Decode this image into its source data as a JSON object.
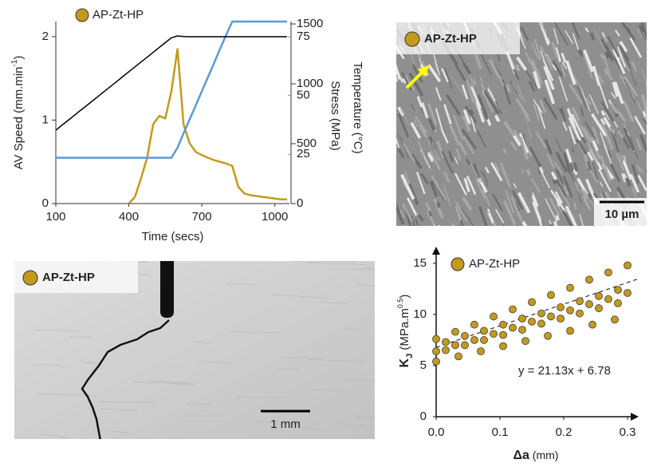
{
  "chart_data": [
    {
      "type": "line",
      "legend": "AP-Zt-HP",
      "xlabel": "Time (secs)",
      "ylabel_parts": [
        "AV Speed (mm.min",
        "-1",
        ")"
      ],
      "y2label": "Stress (MPa)",
      "y3label": "Temperature (°C)",
      "x": [
        100,
        125,
        150,
        175,
        200,
        225,
        250,
        275,
        300,
        325,
        350,
        375,
        400,
        425,
        450,
        475,
        500,
        525,
        550,
        575,
        600,
        625,
        650,
        675,
        700,
        725,
        750,
        775,
        800,
        825,
        850,
        875,
        900,
        925,
        950,
        975,
        1000,
        1025,
        1050
      ],
      "series": [
        {
          "name": "AP-Zt-HP",
          "color": "#c49a1b",
          "axis": "y",
          "values": [
            null,
            null,
            null,
            null,
            null,
            null,
            null,
            null,
            null,
            null,
            null,
            null,
            0,
            0.08,
            0.3,
            0.55,
            0.95,
            1.05,
            1.02,
            1.35,
            1.85,
            0.95,
            0.72,
            0.62,
            0.58,
            0.55,
            0.52,
            0.5,
            0.48,
            0.45,
            0.2,
            0.12,
            0.1,
            0.09,
            0.08,
            0.07,
            0.06,
            0.05,
            0.05
          ]
        },
        {
          "color": "#5b9bd5",
          "axis": "y2",
          "values": [
            23.5,
            23.5,
            23.5,
            23.5,
            23.5,
            23.5,
            23.5,
            23.5,
            23.5,
            23.5,
            23.5,
            23.5,
            23.5,
            23.5,
            23.5,
            23.5,
            23.5,
            23.5,
            23.5,
            23.5,
            27.8,
            33.9,
            39.9,
            45.8,
            51.8,
            57.8,
            63.8,
            69.8,
            75.8,
            81.5,
            81.5,
            81.5,
            81.5,
            81.5,
            81.5,
            81.5,
            81.5,
            81.5,
            81.5
          ]
        },
        {
          "color": "#000000",
          "axis": "y3",
          "values": [
            613,
            654,
            694,
            735,
            776,
            816,
            857,
            897,
            938,
            979,
            1019,
            1060,
            1101,
            1141,
            1182,
            1222,
            1263,
            1304,
            1344,
            1385,
            1400,
            1395,
            1393,
            1393,
            1393,
            1393,
            1393,
            1393,
            1393,
            1393,
            1393,
            1393,
            1393,
            1393,
            1393,
            1393,
            1393,
            1393,
            1393
          ]
        }
      ],
      "xlim": [
        100,
        1060
      ],
      "xticks": [
        100,
        400,
        700,
        1000
      ],
      "ylim": [
        0,
        2.18
      ],
      "yticks": [
        0,
        1,
        2
      ],
      "y2lim": [
        4,
        81.5
      ],
      "y2ticks": [
        25,
        50,
        75
      ],
      "y2color": "#5b9bd5",
      "y3lim": [
        0,
        1520
      ],
      "y3ticks": [
        0,
        500,
        1000,
        1500
      ]
    },
    {
      "type": "scatter",
      "xlabel_parts": [
        "Δa",
        " (mm)"
      ],
      "ylabel_parts": [
        "K",
        "J",
        " (MPa.m",
        "0.5",
        ")"
      ],
      "x": [
        0,
        0.03,
        0.06,
        0.09,
        0.12,
        0.15,
        0.18,
        0.21,
        0.24,
        0.27,
        0.3,
        0.015,
        0.045,
        0.075,
        0.105,
        0.135,
        0.165,
        0.195,
        0.225,
        0.255,
        0.285,
        0,
        0.03,
        0.06,
        0.09,
        0.12,
        0.15,
        0.18,
        0.21,
        0.24,
        0.27,
        0.3,
        0.015,
        0.045,
        0.075,
        0.105,
        0.135,
        0.165,
        0.195,
        0.225,
        0.255,
        0.285,
        0,
        0.035,
        0.07,
        0.105,
        0.14,
        0.175,
        0.21,
        0.245,
        0.28
      ],
      "series": [
        {
          "name": "AP-Zt-HP",
          "color": "#c49a1b",
          "values": [
            7.6,
            8.3,
            9.0,
            9.8,
            10.5,
            11.2,
            11.9,
            12.6,
            13.4,
            14.1,
            14.8,
            7.3,
            7.9,
            8.4,
            9.0,
            9.6,
            10.1,
            10.7,
            11.3,
            11.8,
            12.4,
            6.4,
            7.0,
            7.5,
            8.1,
            8.7,
            9.3,
            9.8,
            10.4,
            11.0,
            11.5,
            12.1,
            6.5,
            7.0,
            7.5,
            8.0,
            8.5,
            9.1,
            9.6,
            10.1,
            10.6,
            11.1,
            5.4,
            5.9,
            6.4,
            6.9,
            7.4,
            7.9,
            8.4,
            9.0,
            9.5
          ]
        }
      ],
      "trendline": {
        "slope": 21.13,
        "intercept": 6.78,
        "label": "y = 21.13x + 6.78"
      },
      "xlim": [
        0,
        0.3
      ],
      "xticks": [
        {
          "value": 0,
          "label": "0.0"
        },
        0.1,
        0.2,
        0.3
      ],
      "ylim": [
        0,
        16
      ],
      "yticks": [
        0,
        5,
        10,
        15
      ]
    }
  ],
  "images": [
    {
      "label": "AP-Zt-HP",
      "scale_bar": "10 µm"
    },
    {
      "label": "AP-Zt-HP",
      "scale_bar": "1 mm"
    }
  ]
}
